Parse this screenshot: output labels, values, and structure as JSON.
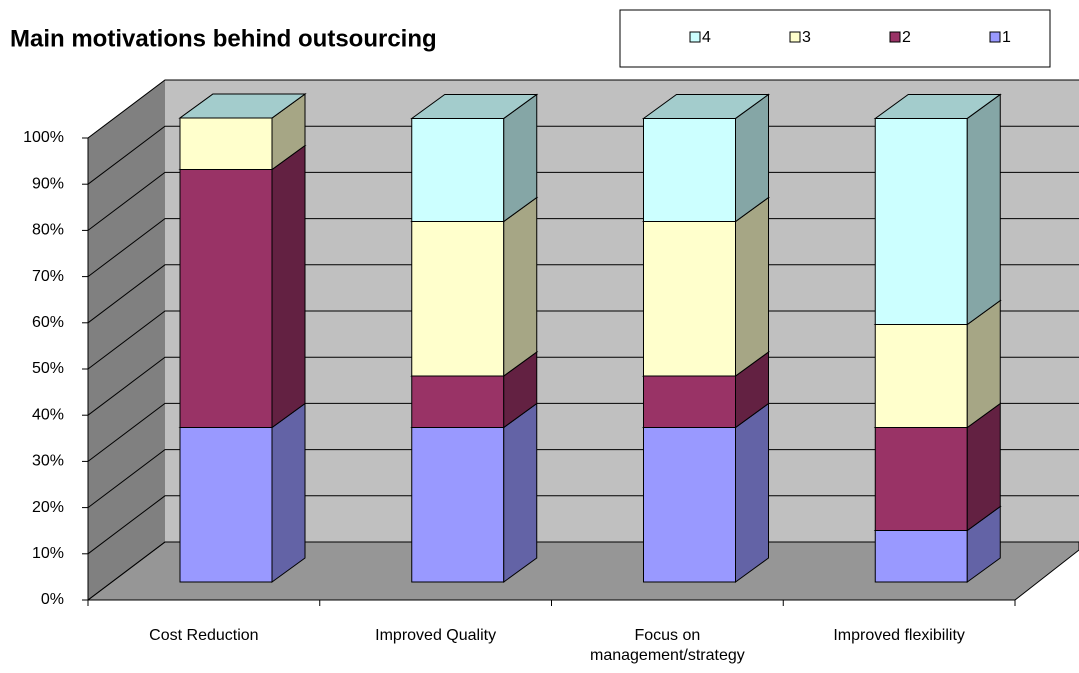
{
  "chart_data": {
    "type": "bar3d_stacked",
    "title": "Main motivations behind outsourcing",
    "categories": [
      "Cost Reduction",
      "Improved Quality",
      "Focus on management/strategy",
      "Improved flexibility"
    ],
    "series": [
      {
        "name": "1",
        "color": "#9999ff",
        "values": [
          33.3,
          33.3,
          33.3,
          11.1
        ]
      },
      {
        "name": "2",
        "color": "#993366",
        "values": [
          55.6,
          11.1,
          11.1,
          22.2
        ]
      },
      {
        "name": "3",
        "color": "#ffffcc",
        "values": [
          11.1,
          33.3,
          33.3,
          22.2
        ]
      },
      {
        "name": "4",
        "color": "#ccffff",
        "values": [
          0,
          22.2,
          22.2,
          44.4
        ]
      }
    ],
    "ylim": [
      0,
      100
    ],
    "yticks": [
      {
        "value": 0,
        "label": "0%"
      },
      {
        "value": 10,
        "label": "10%"
      },
      {
        "value": 20,
        "label": "20%"
      },
      {
        "value": 30,
        "label": "30%"
      },
      {
        "value": 40,
        "label": "40%"
      },
      {
        "value": 50,
        "label": "50%"
      },
      {
        "value": 60,
        "label": "60%"
      },
      {
        "value": 70,
        "label": "70%"
      },
      {
        "value": 80,
        "label": "80%"
      },
      {
        "value": 90,
        "label": "90%"
      },
      {
        "value": 100,
        "label": "100%"
      }
    ],
    "grid": true
  }
}
